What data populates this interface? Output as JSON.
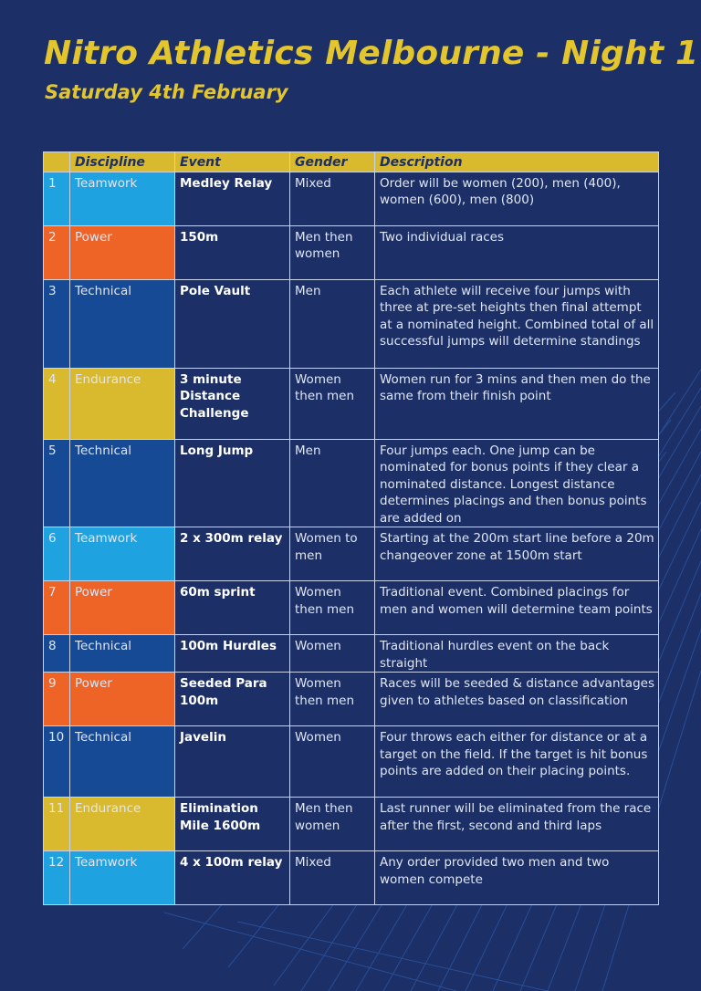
{
  "header": {
    "title": "Nitro Athletics Melbourne - Night 1",
    "subtitle": "Saturday 4th February"
  },
  "table": {
    "columns": [
      "",
      "Discipline",
      "Event",
      "Gender",
      "Description"
    ],
    "rows": [
      {
        "num": "1",
        "discipline": "Teamwork",
        "event": "Medley Relay",
        "gender": "Mixed",
        "description": "Order will be women (200), men (400), women (600), men (800)"
      },
      {
        "num": "2",
        "discipline": "Power",
        "event": "150m",
        "gender": "Men then women",
        "description": "Two individual races"
      },
      {
        "num": "3",
        "discipline": "Technical",
        "event": "Pole Vault",
        "gender": "Men",
        "description": "Each athlete will receive four jumps with three at pre-set heights then final attempt at a nominated height. Combined total of all successful jumps will determine standings"
      },
      {
        "num": "4",
        "discipline": "Endurance",
        "event": "3 minute Distance Challenge",
        "gender": "Women then men",
        "description": "Women run for 3 mins and then men do the same from their finish point"
      },
      {
        "num": "5",
        "discipline": "Technical",
        "event": "Long Jump",
        "gender": "Men",
        "description": "Four jumps each. One jump can be nominated for bonus points if they clear a nominated distance. Longest distance determines placings and then bonus points are added on"
      },
      {
        "num": "6",
        "discipline": "Teamwork",
        "event": "2 x 300m relay",
        "gender": "Women to men",
        "description": "Starting at the 200m start line before a 20m changeover zone at 1500m start"
      },
      {
        "num": "7",
        "discipline": "Power",
        "event": "60m sprint",
        "gender": "Women then men",
        "description": "Traditional event. Combined placings for men and women will determine team points"
      },
      {
        "num": "8",
        "discipline": "Technical",
        "event": "100m Hurdles",
        "gender": "Women",
        "description": "Traditional hurdles event on the back straight"
      },
      {
        "num": "9",
        "discipline": "Power",
        "event": "Seeded Para 100m",
        "gender": "Women then men",
        "description": "Races will be seeded & distance advantages given to athletes based on classification"
      },
      {
        "num": "10",
        "discipline": "Technical",
        "event": "Javelin",
        "gender": "Women",
        "description": "Four throws each either for distance or at a target on the field. If the target is hit bonus points are added on their placing points."
      },
      {
        "num": "11",
        "discipline": "Endurance",
        "event": "Elimination Mile 1600m",
        "gender": "Men then women",
        "description": "Last runner will be eliminated from the race after the first, second and third laps"
      },
      {
        "num": "12",
        "discipline": "Teamwork",
        "event": "4 x 100m relay",
        "gender": "Mixed",
        "description": "Any order provided two men and two women compete"
      }
    ]
  },
  "colors": {
    "background": "#1c2f66",
    "title": "#e3c52e",
    "header_row": "#d9b92e",
    "teamwork": "#1ea3e0",
    "power": "#ee6326",
    "technical": "#174a94",
    "endurance": "#d9b92e"
  }
}
